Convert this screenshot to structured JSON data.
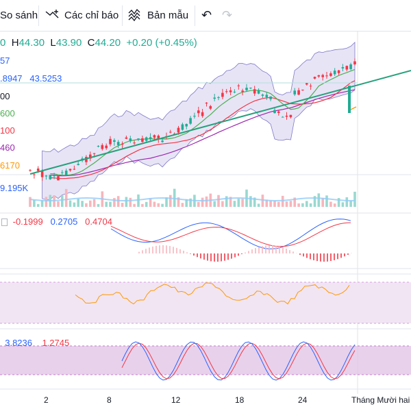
{
  "toolbar": {
    "compare_label": "So sánh",
    "indicators_label": "Các chỉ báo",
    "templates_label": "Bản mẫu",
    "icons": {
      "indicators": "line-plus-icon",
      "templates": "template-icon",
      "undo": "undo-icon",
      "redo": "redo-icon"
    }
  },
  "ohlc": {
    "o_value": "0",
    "h_label": "H",
    "h_value": "44.30",
    "l_label": "L",
    "l_value": "43.90",
    "c_label": "C",
    "c_value": "44.20",
    "change": "+0.20 (+0.45%)"
  },
  "legend": {
    "ma1": "57",
    "bb": ".8947",
    "bb2": "43.5253",
    "ma2": "00",
    "ma3": "600",
    "ma4": "100",
    "ma5": "460",
    "ma6": "6170",
    "volume": "9.195K",
    "macd": "-0.1999",
    "macd_signal": "0.2705",
    "macd_hist": "0.4704",
    "stoch_k": "3.8236",
    "stoch_d": "1.2745"
  },
  "colors": {
    "up": "#22ab94",
    "down": "#f23645",
    "trend": "#26a17b",
    "ma_blue": "#2962ff",
    "ma_green": "#4caf50",
    "ma_red": "#f23645",
    "ma_purple": "#9c27b0",
    "ma_orange": "#ff9800",
    "band_fill": "#c9c4ec",
    "rsi_bg": "#f1e5f3",
    "stoch_bg": "#e2c5e6"
  },
  "x_axis": [
    "2",
    "8",
    "12",
    "18",
    "24",
    "Tháng Mười hai"
  ]
}
